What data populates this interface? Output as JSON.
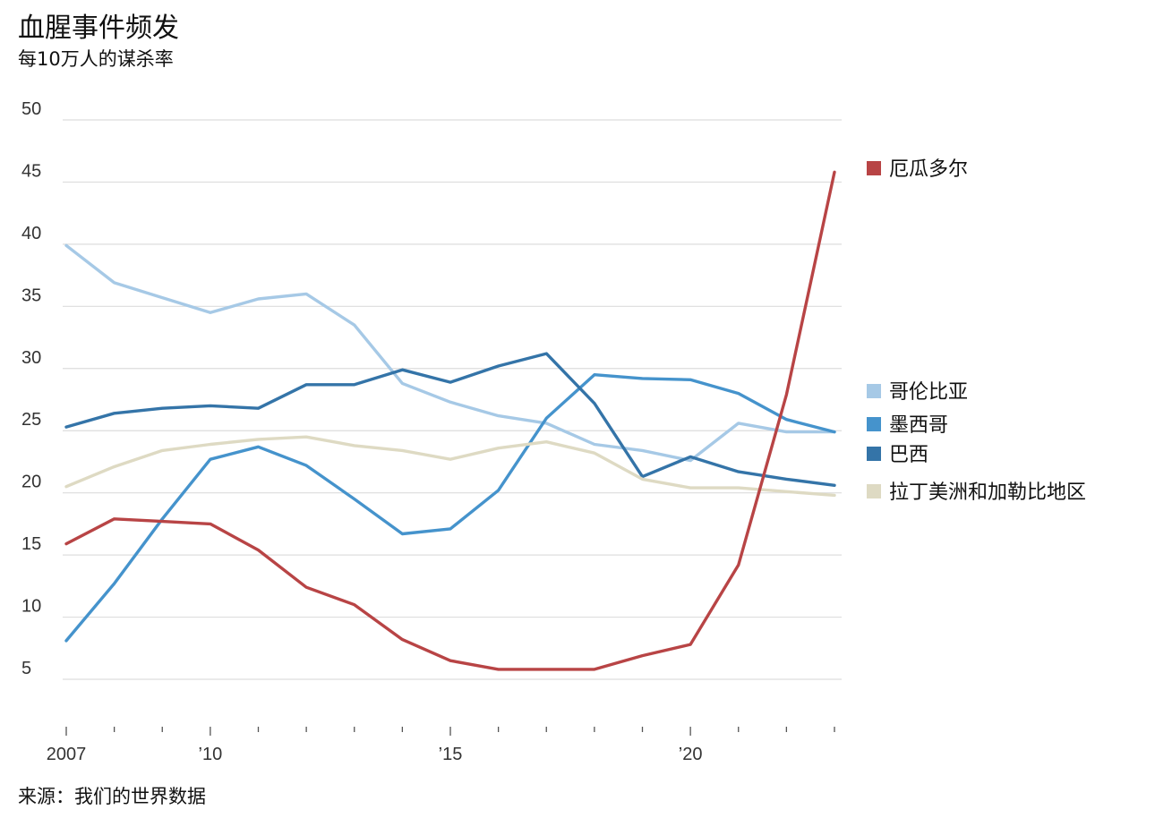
{
  "title": "血腥事件频发",
  "subtitle": "每10万人的谋杀率",
  "source": "来源：我们的世界数据",
  "chart_data": {
    "type": "line",
    "title": "血腥事件频发",
    "subtitle": "每10万人的谋杀率",
    "xlabel": "",
    "ylabel": "",
    "x": [
      2007,
      2008,
      2009,
      2010,
      2011,
      2012,
      2013,
      2014,
      2015,
      2016,
      2017,
      2018,
      2019,
      2020,
      2021,
      2022,
      2023
    ],
    "xlim": [
      2007,
      2023
    ],
    "ylim": [
      5,
      50
    ],
    "y_ticks": [
      5,
      10,
      15,
      20,
      25,
      30,
      35,
      40,
      45,
      50
    ],
    "y_tick_labels": [
      "5",
      "10",
      "15",
      "20",
      "25",
      "30",
      "35",
      "40",
      "45",
      "50"
    ],
    "x_ticks": [
      2007,
      2010,
      2015,
      2020
    ],
    "x_tick_labels": [
      "2007",
      "’10",
      "’15",
      "’20"
    ],
    "grid": "horizontal",
    "legend_position": "right",
    "series": [
      {
        "name": "哥伦比亚",
        "color": "#a6c9e6",
        "values": [
          39.9,
          36.9,
          35.7,
          34.5,
          35.6,
          36.0,
          33.5,
          28.8,
          27.3,
          26.2,
          25.6,
          23.9,
          23.4,
          22.6,
          25.6,
          24.9,
          24.9
        ]
      },
      {
        "name": "墨西哥",
        "color": "#4593cc",
        "values": [
          8.1,
          12.7,
          17.9,
          22.7,
          23.7,
          22.2,
          19.5,
          16.7,
          17.1,
          20.2,
          26.0,
          29.5,
          29.2,
          29.1,
          28.0,
          25.9,
          24.9
        ]
      },
      {
        "name": "巴西",
        "color": "#3474a8",
        "values": [
          25.3,
          26.4,
          26.8,
          27.0,
          26.8,
          28.7,
          28.7,
          29.9,
          28.9,
          30.2,
          31.2,
          27.2,
          21.3,
          22.9,
          21.7,
          21.1,
          20.6
        ]
      },
      {
        "name": "拉丁美洲和加勒比地区",
        "color": "#dedac3",
        "values": [
          20.5,
          22.1,
          23.4,
          23.9,
          24.3,
          24.5,
          23.8,
          23.4,
          22.7,
          23.6,
          24.1,
          23.2,
          21.1,
          20.4,
          20.4,
          20.1,
          19.8
        ]
      },
      {
        "name": "厄瓜多尔",
        "color": "#b84445",
        "values": [
          15.9,
          17.9,
          17.7,
          17.5,
          15.4,
          12.4,
          11.0,
          8.2,
          6.5,
          5.8,
          5.8,
          5.8,
          6.9,
          7.8,
          14.2,
          27.9,
          45.8
        ]
      }
    ],
    "legend": [
      {
        "label": "厄瓜多尔",
        "color": "#b84445"
      },
      {
        "label": "哥伦比亚",
        "color": "#a6c9e6"
      },
      {
        "label": "墨西哥",
        "color": "#4593cc"
      },
      {
        "label": "巴西",
        "color": "#3474a8"
      },
      {
        "label": "拉丁美洲和加勒比地区",
        "color": "#dedac3"
      }
    ]
  }
}
